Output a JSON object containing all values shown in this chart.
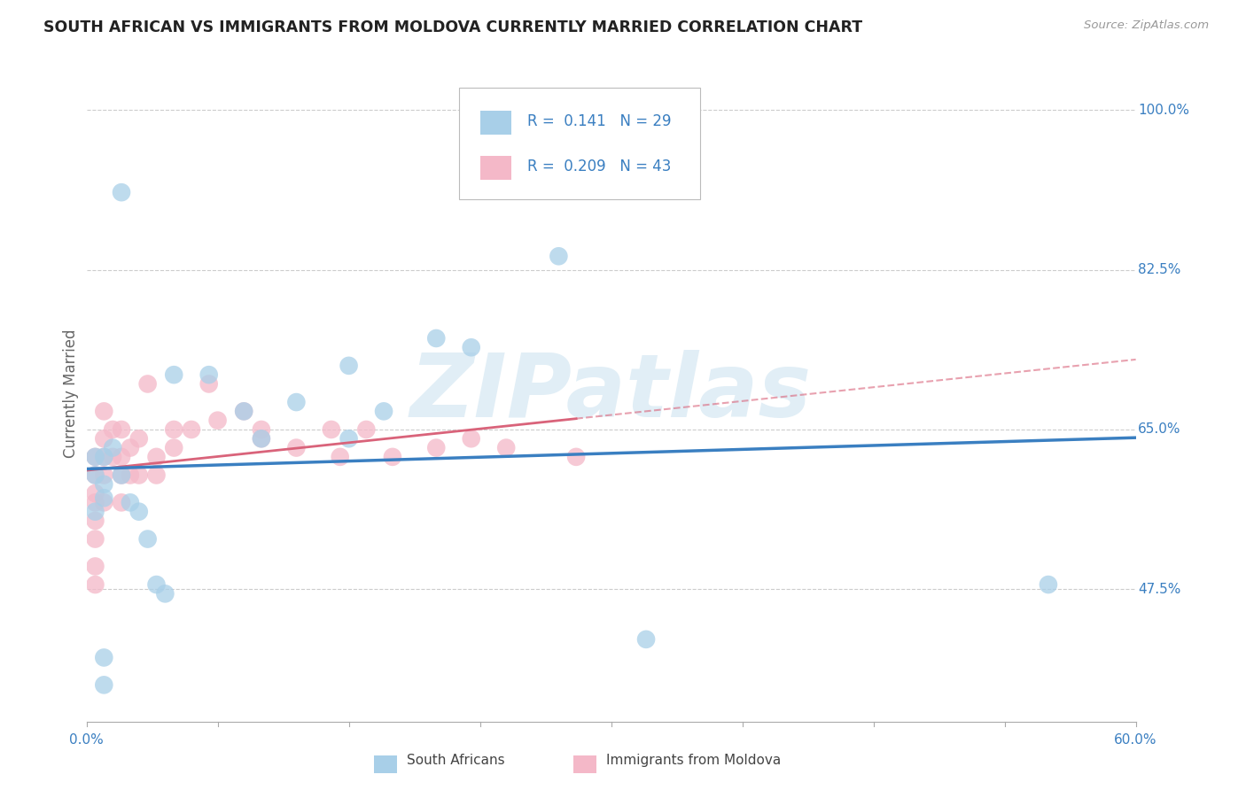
{
  "title": "SOUTH AFRICAN VS IMMIGRANTS FROM MOLDOVA CURRENTLY MARRIED CORRELATION CHART",
  "source": "Source: ZipAtlas.com",
  "ylabel": "Currently Married",
  "ytick_labels": [
    "47.5%",
    "65.0%",
    "82.5%",
    "100.0%"
  ],
  "ytick_values": [
    0.475,
    0.65,
    0.825,
    1.0
  ],
  "xlim": [
    0.0,
    0.6
  ],
  "ylim": [
    0.33,
    1.05
  ],
  "blue_color": "#a8cfe8",
  "pink_color": "#f4b8c8",
  "blue_line_color": "#3a7fc1",
  "pink_line_color": "#d9637a",
  "blue_R": "0.141",
  "blue_N": "29",
  "pink_R": "0.209",
  "pink_N": "43",
  "watermark": "ZIPatlas",
  "legend_label_blue": "South Africans",
  "legend_label_pink": "Immigrants from Moldova",
  "blue_points_x": [
    0.02,
    0.05,
    0.07,
    0.09,
    0.1,
    0.12,
    0.15,
    0.15,
    0.17,
    0.2,
    0.22,
    0.27,
    0.01,
    0.01,
    0.01,
    0.015,
    0.02,
    0.025,
    0.03,
    0.035,
    0.04,
    0.045,
    0.32,
    0.55,
    0.005,
    0.005,
    0.005,
    0.01,
    0.01
  ],
  "blue_points_y": [
    0.91,
    0.71,
    0.71,
    0.67,
    0.64,
    0.68,
    0.64,
    0.72,
    0.67,
    0.75,
    0.74,
    0.84,
    0.575,
    0.59,
    0.62,
    0.63,
    0.6,
    0.57,
    0.56,
    0.53,
    0.48,
    0.47,
    0.42,
    0.48,
    0.6,
    0.62,
    0.56,
    0.37,
    0.4
  ],
  "pink_points_x": [
    0.01,
    0.01,
    0.01,
    0.01,
    0.01,
    0.015,
    0.015,
    0.02,
    0.02,
    0.02,
    0.02,
    0.025,
    0.025,
    0.03,
    0.03,
    0.035,
    0.04,
    0.04,
    0.05,
    0.05,
    0.06,
    0.07,
    0.075,
    0.09,
    0.1,
    0.1,
    0.12,
    0.14,
    0.145,
    0.16,
    0.175,
    0.2,
    0.22,
    0.24,
    0.28,
    0.005,
    0.005,
    0.005,
    0.005,
    0.005,
    0.005,
    0.005,
    0.005
  ],
  "pink_points_y": [
    0.67,
    0.64,
    0.62,
    0.6,
    0.57,
    0.65,
    0.62,
    0.62,
    0.65,
    0.6,
    0.57,
    0.63,
    0.6,
    0.64,
    0.6,
    0.7,
    0.62,
    0.6,
    0.65,
    0.63,
    0.65,
    0.7,
    0.66,
    0.67,
    0.64,
    0.65,
    0.63,
    0.65,
    0.62,
    0.65,
    0.62,
    0.63,
    0.64,
    0.63,
    0.62,
    0.62,
    0.6,
    0.58,
    0.57,
    0.55,
    0.53,
    0.5,
    0.48
  ]
}
